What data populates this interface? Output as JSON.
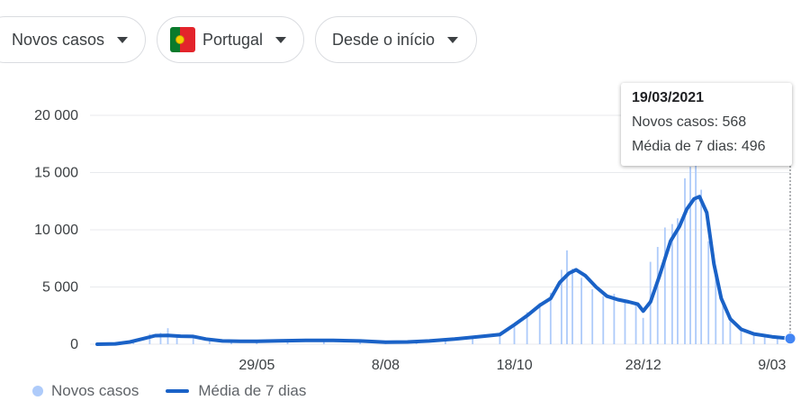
{
  "controls": {
    "metric": "Novos casos",
    "country": "Portugal",
    "range": "Desde o início"
  },
  "tooltip": {
    "date": "19/03/2021",
    "cases_text": "Novos casos: 568",
    "avg_text": "Média de 7 dias: 496"
  },
  "legend": {
    "bars": "Novos casos",
    "line": "Média de 7 dias"
  },
  "colors": {
    "bars": "#aecbfa",
    "line": "#1a62c7",
    "grid": "#e8eaed",
    "marker": "#4285f4"
  },
  "chart_data": {
    "type": "bar",
    "title": "",
    "xlabel": "",
    "ylabel": "",
    "ylim": [
      0,
      20000
    ],
    "yticks": [
      {
        "value": 0,
        "label": "0"
      },
      {
        "value": 5000,
        "label": "5 000"
      },
      {
        "value": 10000,
        "label": "10 000"
      },
      {
        "value": 15000,
        "label": "15 000"
      },
      {
        "value": 20000,
        "label": "20 000"
      }
    ],
    "x_range": [
      "2020-03-02",
      "2021-03-19"
    ],
    "xticks": [
      {
        "date": "2020-05-29",
        "label": "29/05"
      },
      {
        "date": "2020-08-08",
        "label": "8/08"
      },
      {
        "date": "2020-10-18",
        "label": "18/10"
      },
      {
        "date": "2020-12-28",
        "label": "28/12"
      },
      {
        "date": "2021-03-09",
        "label": "9/03"
      }
    ],
    "highlight": {
      "date": "2021-03-19",
      "cases": 568,
      "avg": 496
    },
    "series": [
      {
        "name": "Média de 7 dias",
        "type": "line",
        "points": [
          [
            "2020-03-02",
            0
          ],
          [
            "2020-03-12",
            30
          ],
          [
            "2020-03-20",
            200
          ],
          [
            "2020-03-28",
            500
          ],
          [
            "2020-04-03",
            750
          ],
          [
            "2020-04-10",
            760
          ],
          [
            "2020-04-17",
            700
          ],
          [
            "2020-04-24",
            680
          ],
          [
            "2020-05-01",
            450
          ],
          [
            "2020-05-10",
            280
          ],
          [
            "2020-05-20",
            250
          ],
          [
            "2020-05-29",
            260
          ],
          [
            "2020-06-10",
            300
          ],
          [
            "2020-06-25",
            330
          ],
          [
            "2020-07-10",
            330
          ],
          [
            "2020-07-25",
            280
          ],
          [
            "2020-08-08",
            180
          ],
          [
            "2020-08-20",
            200
          ],
          [
            "2020-09-01",
            280
          ],
          [
            "2020-09-15",
            450
          ],
          [
            "2020-10-01",
            700
          ],
          [
            "2020-10-10",
            850
          ],
          [
            "2020-10-18",
            1700
          ],
          [
            "2020-10-25",
            2500
          ],
          [
            "2020-11-01",
            3400
          ],
          [
            "2020-11-07",
            4000
          ],
          [
            "2020-11-12",
            5400
          ],
          [
            "2020-11-17",
            6200
          ],
          [
            "2020-11-21",
            6500
          ],
          [
            "2020-11-26",
            6000
          ],
          [
            "2020-12-02",
            5000
          ],
          [
            "2020-12-08",
            4200
          ],
          [
            "2020-12-14",
            3900
          ],
          [
            "2020-12-20",
            3700
          ],
          [
            "2020-12-25",
            3500
          ],
          [
            "2020-12-28",
            2900
          ],
          [
            "2021-01-01",
            3700
          ],
          [
            "2021-01-06",
            6000
          ],
          [
            "2021-01-12",
            9000
          ],
          [
            "2021-01-17",
            10300
          ],
          [
            "2021-01-21",
            11800
          ],
          [
            "2021-01-25",
            12700
          ],
          [
            "2021-01-28",
            12900
          ],
          [
            "2021-02-01",
            11500
          ],
          [
            "2021-02-05",
            7000
          ],
          [
            "2021-02-09",
            4000
          ],
          [
            "2021-02-14",
            2200
          ],
          [
            "2021-02-20",
            1300
          ],
          [
            "2021-02-27",
            900
          ],
          [
            "2021-03-09",
            650
          ],
          [
            "2021-03-19",
            496
          ]
        ]
      },
      {
        "name": "Novos casos",
        "type": "bar",
        "points": [
          [
            "2020-03-02",
            0
          ],
          [
            "2020-03-14",
            60
          ],
          [
            "2020-03-22",
            400
          ],
          [
            "2020-03-31",
            900
          ],
          [
            "2020-04-06",
            1000
          ],
          [
            "2020-04-10",
            1400
          ],
          [
            "2020-04-15",
            800
          ],
          [
            "2020-04-24",
            700
          ],
          [
            "2020-05-03",
            420
          ],
          [
            "2020-05-15",
            260
          ],
          [
            "2020-05-29",
            280
          ],
          [
            "2020-06-15",
            320
          ],
          [
            "2020-07-05",
            340
          ],
          [
            "2020-07-25",
            290
          ],
          [
            "2020-08-08",
            190
          ],
          [
            "2020-08-25",
            220
          ],
          [
            "2020-09-10",
            400
          ],
          [
            "2020-09-25",
            650
          ],
          [
            "2020-10-10",
            900
          ],
          [
            "2020-10-18",
            1800
          ],
          [
            "2020-10-25",
            2800
          ],
          [
            "2020-11-01",
            3600
          ],
          [
            "2020-11-07",
            4500
          ],
          [
            "2020-11-13",
            6500
          ],
          [
            "2020-11-16",
            8200
          ],
          [
            "2020-11-19",
            6600
          ],
          [
            "2020-11-24",
            5800
          ],
          [
            "2020-11-30",
            4800
          ],
          [
            "2020-12-06",
            4200
          ],
          [
            "2020-12-12",
            4400
          ],
          [
            "2020-12-18",
            3700
          ],
          [
            "2020-12-24",
            3500
          ],
          [
            "2020-12-28",
            2300
          ],
          [
            "2021-01-01",
            7200
          ],
          [
            "2021-01-05",
            8500
          ],
          [
            "2021-01-09",
            10200
          ],
          [
            "2021-01-13",
            10500
          ],
          [
            "2021-01-16",
            11000
          ],
          [
            "2021-01-20",
            14500
          ],
          [
            "2021-01-23",
            15500
          ],
          [
            "2021-01-26",
            16000
          ],
          [
            "2021-01-29",
            13500
          ],
          [
            "2021-02-02",
            9000
          ],
          [
            "2021-02-06",
            6500
          ],
          [
            "2021-02-10",
            3500
          ],
          [
            "2021-02-14",
            2000
          ],
          [
            "2021-02-20",
            1300
          ],
          [
            "2021-02-27",
            1000
          ],
          [
            "2021-03-05",
            800
          ],
          [
            "2021-03-12",
            650
          ],
          [
            "2021-03-19",
            568
          ]
        ]
      }
    ]
  }
}
